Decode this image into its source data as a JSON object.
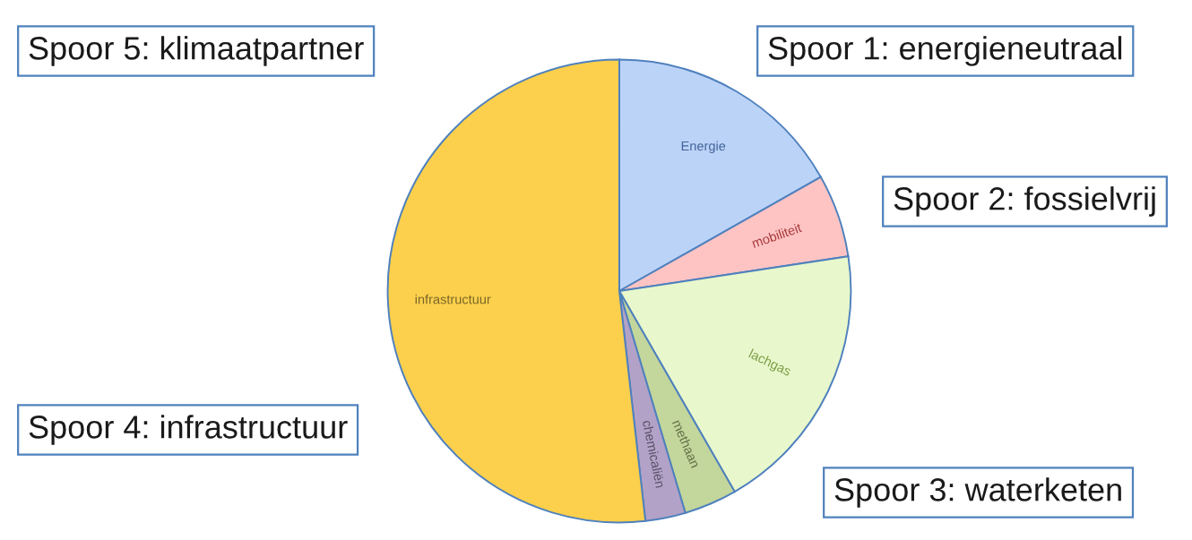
{
  "chart_data": {
    "type": "pie",
    "categories": [
      "Energie",
      "mobiliteit",
      "lachgas",
      "methaan",
      "chemicaliën",
      "infrastructuur"
    ],
    "values": [
      16.8,
      5.8,
      19.1,
      3.7,
      2.8,
      51.8
    ],
    "colors": [
      "#bcd3f8",
      "#fec4c4",
      "#e8f8cc",
      "#c3d69b",
      "#b3a2c7",
      "#fcd04c"
    ],
    "annotations": [
      "Spoor 1: energieneutraal",
      "Spoor 2: fossielvrij",
      "Spoor 3: waterketen",
      "Spoor 4: infrastructuur",
      "Spoor 5: klimaatpartner"
    ]
  }
}
